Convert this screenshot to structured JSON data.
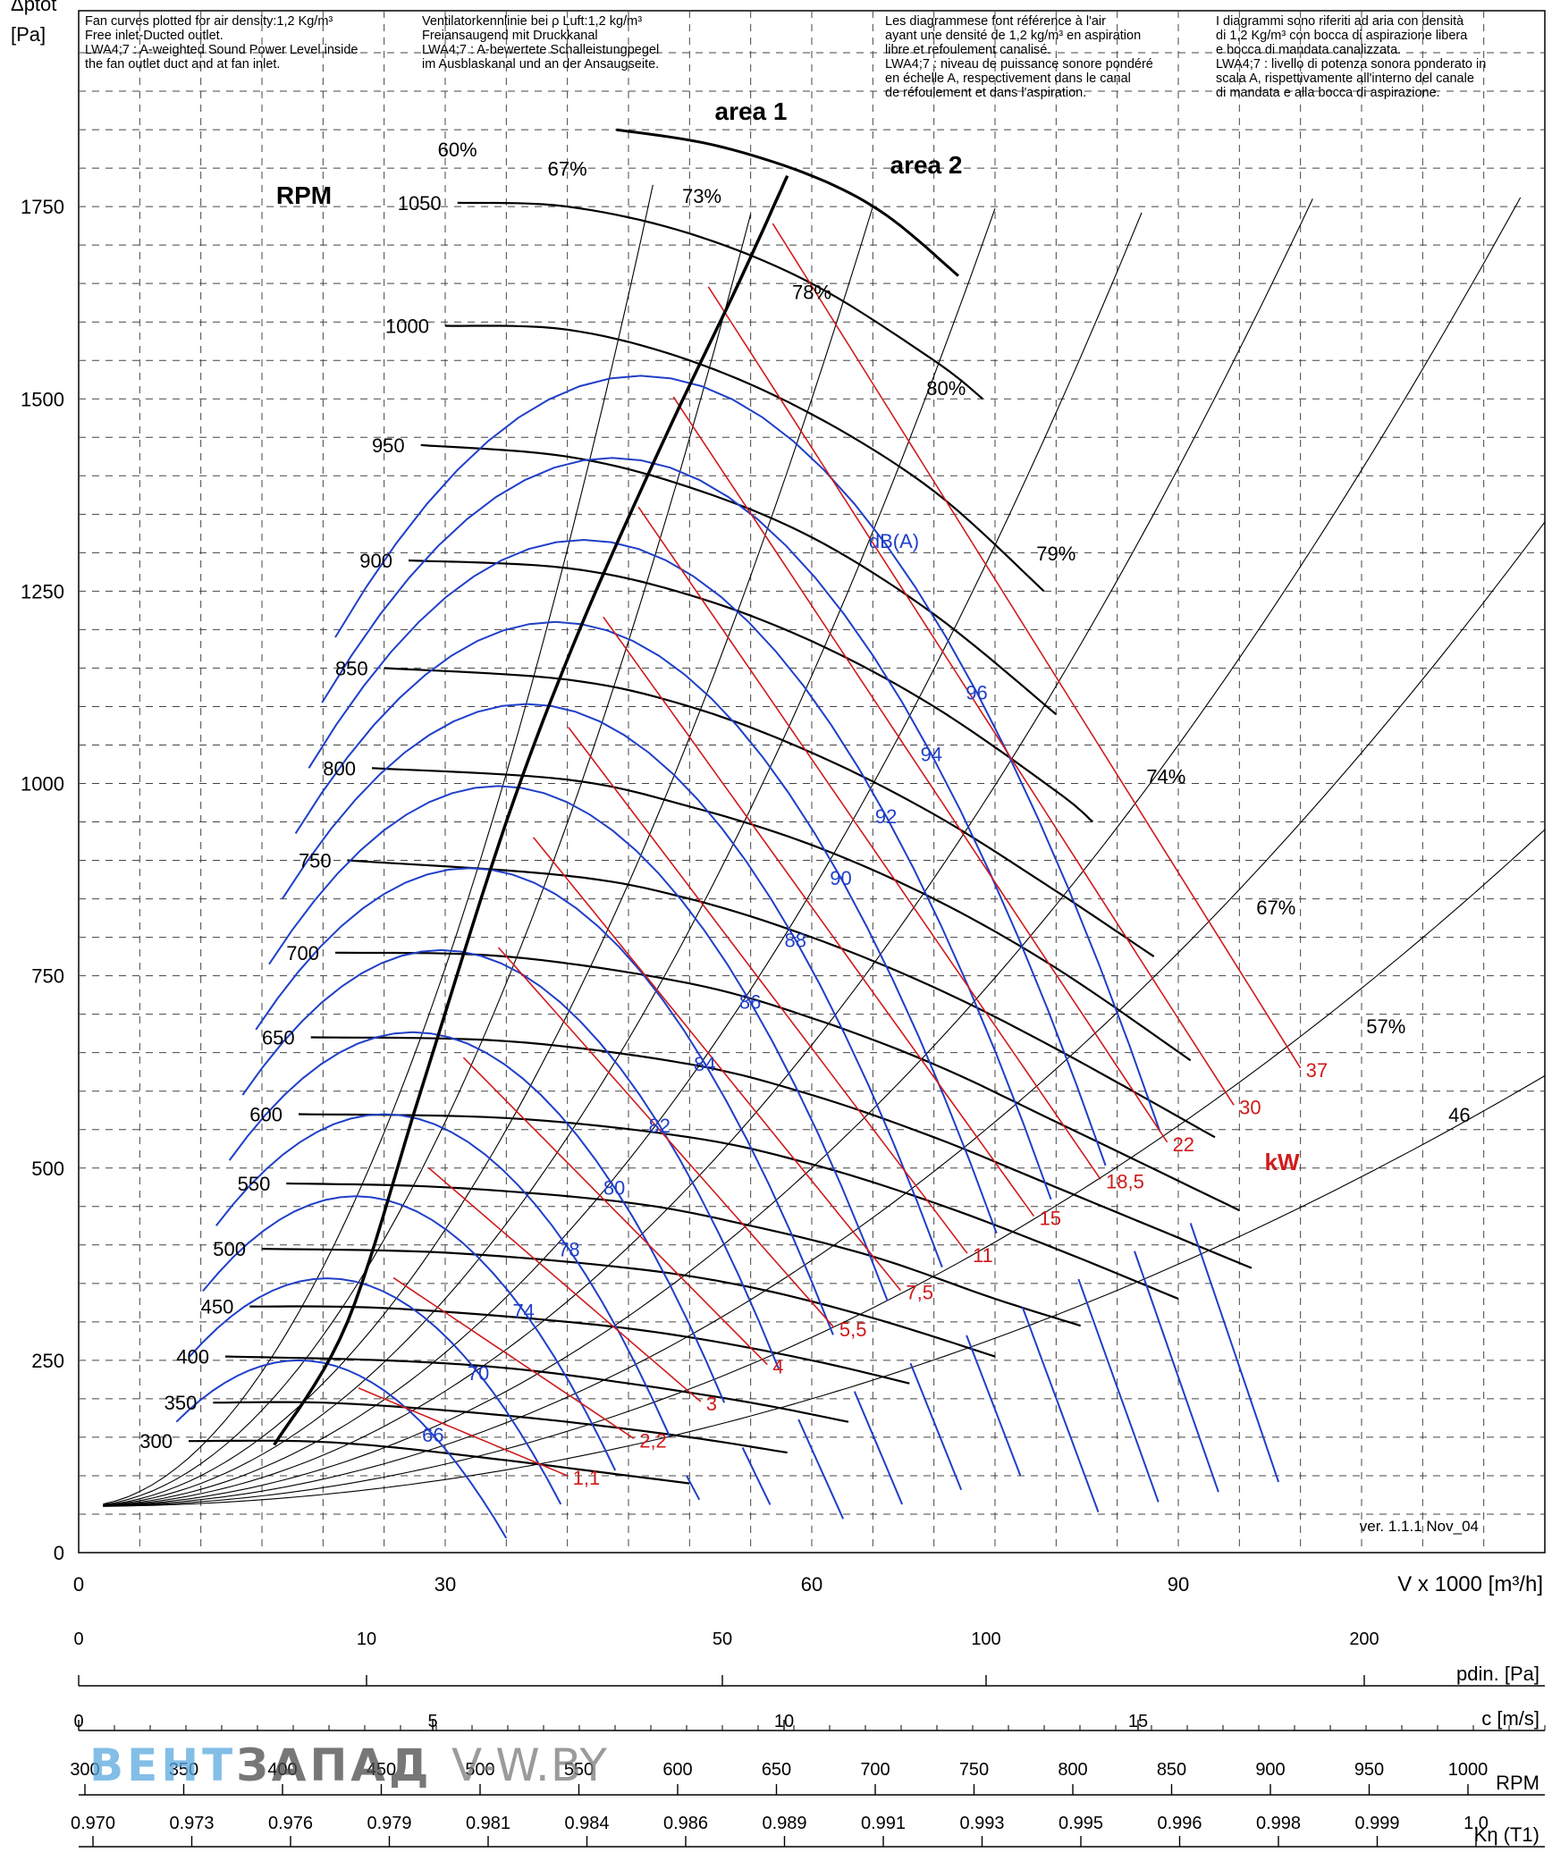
{
  "chart_data": {
    "type": "line",
    "title": "",
    "ylabel": "Δptot",
    "yunit": "[Pa]",
    "xlabel": "V x 1000 [m³/h]",
    "xlim": [
      0,
      120
    ],
    "ylim": [
      0,
      1950
    ],
    "xticks": [
      0,
      30,
      60,
      90
    ],
    "yticks": [
      0,
      250,
      500,
      750,
      1000,
      1250,
      1500,
      1750
    ],
    "grid": true,
    "notes": {
      "en": [
        "Fan curves plotted for air density:1,2 Kg/m³",
        "Free inlet-Ducted outlet.",
        "LWA4;7 : A-weighted Sound Power Level inside",
        "the fan outlet duct and at fan inlet."
      ],
      "de": [
        "Ventilatorkennlinie bei ρ Luft:1,2 kg/m³",
        "Freiansaugend mit Druckkanal",
        "LWA4;7 : A-bewertete Schalleistungpegel",
        "im Ausblaskanal und an der Ansaugseite."
      ],
      "fr": [
        "Les diagrammese font référence à l'air",
        "ayant une densité de 1,2 kg/m³ en aspiration",
        "libre et refoulement canalisé.",
        "LWA4;7 : niveau de puissance sonore pondéré",
        "en échelle A, respectivement dans le canal",
        "de réfoulement et dans l'aspiration."
      ],
      "it": [
        "I diagrammi sono riferiti ad aria con densità",
        "di 1,2 Kg/m³ con bocca di aspirazione libera",
        "e bocca di mandata canalizzata.",
        "LWA4;7 : livello di potenza sonora ponderato in",
        "scala A, rispettivamente all'interno del canale",
        "di mandata e alla bocca di aspirazione."
      ]
    },
    "area_labels": [
      "area 1",
      "area 2"
    ],
    "rpm_label": "RPM",
    "kw_label": "kW",
    "db_unit": "dB(A)",
    "version": "ver. 1.1.1 Nov_04",
    "rpm_curves": [
      {
        "rpm": 1050,
        "points": [
          [
            31,
            1755
          ],
          [
            40,
            1750
          ],
          [
            50,
            1715
          ],
          [
            60,
            1650
          ],
          [
            70,
            1550
          ],
          [
            74,
            1500
          ]
        ]
      },
      {
        "rpm": 1000,
        "points": [
          [
            30,
            1595
          ],
          [
            40,
            1590
          ],
          [
            50,
            1550
          ],
          [
            60,
            1480
          ],
          [
            70,
            1380
          ],
          [
            79,
            1250
          ]
        ]
      },
      {
        "rpm": 950,
        "points": [
          [
            28,
            1440
          ],
          [
            40,
            1425
          ],
          [
            50,
            1385
          ],
          [
            60,
            1320
          ],
          [
            70,
            1220
          ],
          [
            80,
            1090
          ]
        ]
      },
      {
        "rpm": 900,
        "points": [
          [
            27,
            1290
          ],
          [
            40,
            1280
          ],
          [
            50,
            1245
          ],
          [
            60,
            1185
          ],
          [
            70,
            1100
          ],
          [
            80,
            990
          ],
          [
            83,
            950
          ]
        ]
      },
      {
        "rpm": 850,
        "points": [
          [
            25,
            1150
          ],
          [
            40,
            1135
          ],
          [
            50,
            1100
          ],
          [
            60,
            1040
          ],
          [
            70,
            960
          ],
          [
            80,
            860
          ],
          [
            88,
            775
          ]
        ]
      },
      {
        "rpm": 800,
        "points": [
          [
            24,
            1020
          ],
          [
            40,
            1005
          ],
          [
            50,
            970
          ],
          [
            60,
            920
          ],
          [
            70,
            850
          ],
          [
            80,
            760
          ],
          [
            91,
            640
          ]
        ]
      },
      {
        "rpm": 750,
        "points": [
          [
            22,
            900
          ],
          [
            40,
            880
          ],
          [
            50,
            850
          ],
          [
            60,
            800
          ],
          [
            70,
            735
          ],
          [
            80,
            655
          ],
          [
            93,
            540
          ]
        ]
      },
      {
        "rpm": 700,
        "points": [
          [
            21,
            780
          ],
          [
            35,
            775
          ],
          [
            50,
            740
          ],
          [
            60,
            695
          ],
          [
            70,
            635
          ],
          [
            80,
            560
          ],
          [
            95,
            445
          ]
        ]
      },
      {
        "rpm": 650,
        "points": [
          [
            19,
            670
          ],
          [
            35,
            665
          ],
          [
            50,
            635
          ],
          [
            60,
            595
          ],
          [
            70,
            540
          ],
          [
            80,
            475
          ],
          [
            96,
            370
          ]
        ]
      },
      {
        "rpm": 600,
        "points": [
          [
            18,
            570
          ],
          [
            35,
            565
          ],
          [
            50,
            540
          ],
          [
            60,
            505
          ],
          [
            70,
            455
          ],
          [
            80,
            395
          ],
          [
            90,
            330
          ]
        ]
      },
      {
        "rpm": 550,
        "points": [
          [
            17,
            480
          ],
          [
            30,
            475
          ],
          [
            45,
            455
          ],
          [
            55,
            425
          ],
          [
            65,
            385
          ],
          [
            75,
            330
          ],
          [
            82,
            295
          ]
        ]
      },
      {
        "rpm": 500,
        "points": [
          [
            15,
            395
          ],
          [
            30,
            390
          ],
          [
            45,
            370
          ],
          [
            55,
            345
          ],
          [
            65,
            305
          ],
          [
            75,
            255
          ]
        ]
      },
      {
        "rpm": 450,
        "points": [
          [
            14,
            320
          ],
          [
            25,
            318
          ],
          [
            40,
            300
          ],
          [
            50,
            280
          ],
          [
            60,
            250
          ],
          [
            68,
            220
          ]
        ]
      },
      {
        "rpm": 400,
        "points": [
          [
            12,
            255
          ],
          [
            25,
            250
          ],
          [
            35,
            240
          ],
          [
            45,
            220
          ],
          [
            55,
            195
          ],
          [
            63,
            170
          ]
        ]
      },
      {
        "rpm": 350,
        "points": [
          [
            11,
            195
          ],
          [
            20,
            195
          ],
          [
            30,
            185
          ],
          [
            40,
            170
          ],
          [
            50,
            150
          ],
          [
            58,
            130
          ]
        ]
      },
      {
        "rpm": 300,
        "points": [
          [
            9,
            145
          ],
          [
            18,
            145
          ],
          [
            25,
            138
          ],
          [
            35,
            120
          ],
          [
            45,
            100
          ],
          [
            50,
            90
          ]
        ]
      }
    ],
    "efficiency_lines": [
      "60%",
      "67%",
      "73%",
      "78%",
      "80%",
      "79%",
      "74%",
      "67%",
      "57%",
      "46"
    ],
    "db_levels": [
      "66",
      "70",
      "74",
      "78",
      "80",
      "82",
      "84",
      "86",
      "88",
      "90",
      "92",
      "94",
      "96"
    ],
    "kw_levels": [
      "1,1",
      "2,2",
      "3",
      "4",
      "5,5",
      "7,5",
      "11",
      "15",
      "18,5",
      "22",
      "30",
      "37"
    ],
    "rpm_labels": [
      "300",
      "350",
      "400",
      "450",
      "500",
      "550",
      "600",
      "650",
      "700",
      "750",
      "800",
      "850",
      "900",
      "950",
      "1000",
      "1050"
    ]
  },
  "scales": {
    "pdin": {
      "label": "pdin. [Pa]",
      "ticks": [
        "0",
        "10",
        "50",
        "100",
        "200"
      ]
    },
    "c": {
      "label": "c [m/s]",
      "ticks": [
        "0",
        "5",
        "10",
        "15"
      ]
    },
    "rpm": {
      "label": "RPM",
      "ticks": [
        "300",
        "350",
        "400",
        "450",
        "500",
        "550",
        "600",
        "650",
        "700",
        "750",
        "800",
        "850",
        "900",
        "950",
        "1000"
      ]
    },
    "keta": {
      "label": "Kη (T1)",
      "ticks": [
        "0.970",
        "0.973",
        "0.976",
        "0.979",
        "0.981",
        "0.984",
        "0.986",
        "0.989",
        "0.991",
        "0.993",
        "0.995",
        "0.996",
        "0.998",
        "0.999",
        "1.0"
      ]
    }
  },
  "watermark": {
    "part1": "ВЕНТ",
    "part2": "ЗАПАД",
    "part3": "V-W.BY"
  }
}
